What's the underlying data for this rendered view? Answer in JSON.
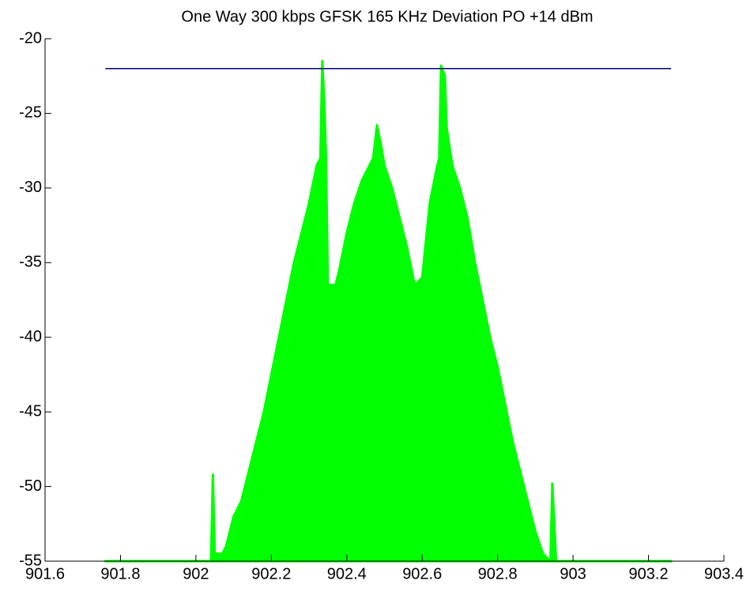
{
  "chart_data": {
    "type": "area",
    "title": "One Way 300 kbps GFSK 165 KHz Deviation PO +14 dBm",
    "xlim": [
      901.6,
      903.4
    ],
    "xticks": [
      901.6,
      901.8,
      902,
      902.2,
      902.4,
      902.6,
      902.8,
      903,
      903.2,
      903.4
    ],
    "ylim": [
      -55,
      -20
    ],
    "yticks": [
      -55,
      -50,
      -45,
      -40,
      -35,
      -30,
      -25,
      -20
    ],
    "grid": false,
    "series": [
      {
        "color": "#00ff00",
        "fill": true,
        "x": [
          901.76,
          902.04,
          902.045,
          902.05,
          902.07,
          902.08,
          902.1,
          902.12,
          902.14,
          902.16,
          902.18,
          902.2,
          902.22,
          902.24,
          902.26,
          902.28,
          902.3,
          902.32,
          902.33,
          902.335,
          902.34,
          902.345,
          902.35,
          902.37,
          902.38,
          902.4,
          902.42,
          902.44,
          902.46,
          902.47,
          902.48,
          902.49,
          902.5,
          902.52,
          902.54,
          902.56,
          902.58,
          902.6,
          902.62,
          902.64,
          902.645,
          902.65,
          902.66,
          902.665,
          902.68,
          902.7,
          902.72,
          902.74,
          902.76,
          902.78,
          902.8,
          902.82,
          902.84,
          902.86,
          902.88,
          902.9,
          902.92,
          902.94,
          902.945,
          902.955,
          903.26
        ],
        "values": [
          -55,
          -55,
          -49.2,
          -54.5,
          -54.5,
          -54,
          -52,
          -51,
          -49,
          -47,
          -45,
          -42.5,
          -40,
          -37.5,
          -35,
          -33,
          -31,
          -28.5,
          -28,
          -21.5,
          -24,
          -28,
          -36.5,
          -36.5,
          -35.5,
          -33,
          -31,
          -29.5,
          -28.5,
          -28,
          -25.8,
          -27,
          -28.5,
          -30,
          -32,
          -34,
          -36.5,
          -36,
          -31,
          -28.5,
          -28,
          -21.8,
          -22.5,
          -26,
          -28.5,
          -30,
          -32,
          -35,
          -37.5,
          -40,
          -42,
          -44.5,
          -47,
          -49,
          -51,
          -53,
          -54.5,
          -55,
          -49.8,
          -55,
          -55
        ]
      },
      {
        "color": "#000080",
        "fill": false,
        "x": [
          901.76,
          903.26
        ],
        "values": [
          -22,
          -22
        ]
      }
    ]
  }
}
